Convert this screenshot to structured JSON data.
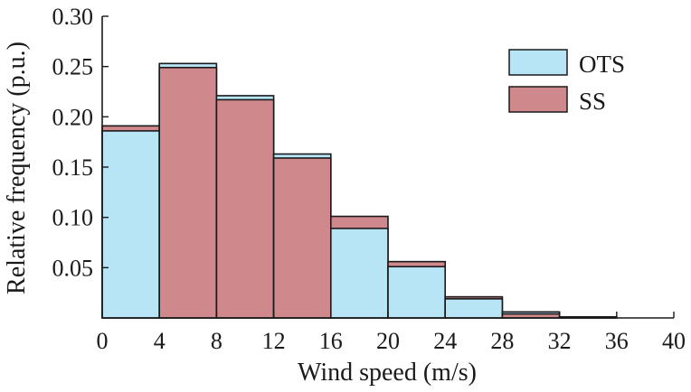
{
  "chart_data": {
    "type": "bar",
    "subtype": "overlaid-histogram",
    "title": "",
    "xlabel": "Wind speed (m/s)",
    "ylabel": "Relative frequency (p.u.)",
    "xlim": [
      0,
      40
    ],
    "ylim": [
      0,
      0.3
    ],
    "x_ticks": [
      "0",
      "4",
      "8",
      "12",
      "16",
      "20",
      "24",
      "28",
      "32",
      "36",
      "40"
    ],
    "y_ticks": [
      "0.05",
      "0.10",
      "0.15",
      "0.20",
      "0.25",
      "0.30"
    ],
    "bin_edges": [
      0,
      4,
      8,
      12,
      16,
      20,
      24,
      28,
      32,
      36
    ],
    "grid": false,
    "legend_position": "top-right",
    "series": [
      {
        "name": "OTS",
        "color": "#b7e5f6",
        "values": [
          0.186,
          0.253,
          0.221,
          0.163,
          0.089,
          0.051,
          0.019,
          0.006,
          0.001
        ]
      },
      {
        "name": "SS",
        "color": "#cf888c",
        "values": [
          0.191,
          0.249,
          0.217,
          0.159,
          0.101,
          0.056,
          0.021,
          0.004,
          0.001
        ]
      }
    ]
  }
}
